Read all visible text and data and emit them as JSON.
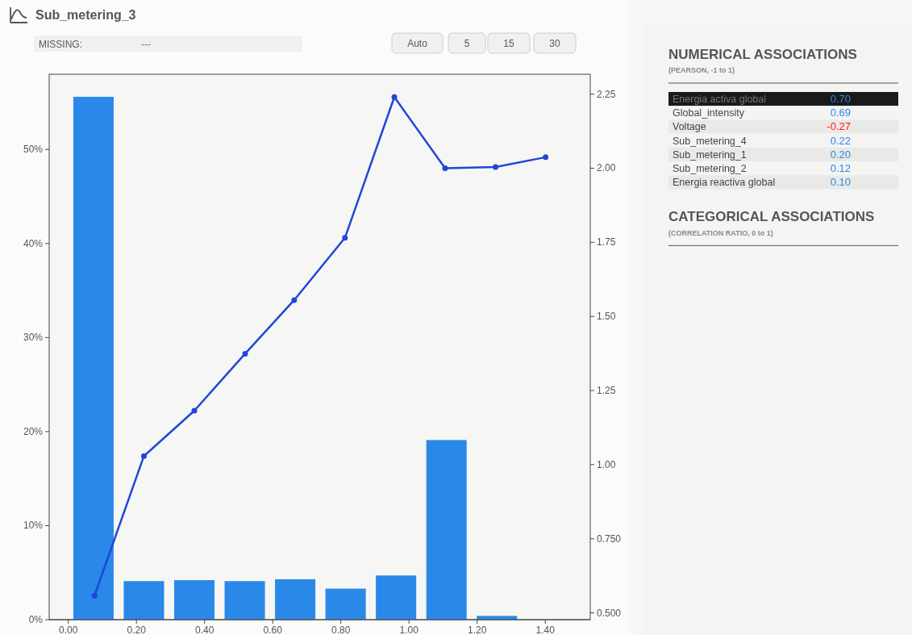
{
  "chart_data": [
    {
      "type": "histogram",
      "title": "Sub_metering_3",
      "annotations": [
        "MISSING:",
        "---",
        "Auto",
        "5",
        "15",
        "30"
      ],
      "bins": [
        0,
        0.148,
        0.296,
        0.444,
        0.592,
        0.74,
        0.888,
        1.036,
        1.184,
        1.332,
        1.48
      ],
      "series": [
        {
          "type": "histogram",
          "color": "#2a88e8",
          "values": [
            55.6,
            4.1,
            4.2,
            4.1,
            4.3,
            3.3,
            4.7,
            19.1,
            0.4,
            0
          ]
        },
        {
          "type": "line",
          "axis": "y2",
          "color": "#2146d8",
          "x": [
            0.077,
            0.222,
            0.37,
            0.519,
            0.663,
            0.812,
            0.957,
            1.106,
            1.254,
            1.401
          ],
          "values": [
            0.558,
            1.029,
            1.182,
            1.374,
            1.555,
            1.765,
            2.24,
            2.0,
            2.004,
            2.037
          ]
        }
      ],
      "xlim": [
        -0.056,
        1.532
      ],
      "xticks": [
        {
          "value": 0,
          "label": "0.00"
        },
        {
          "value": 0.2,
          "label": "0.20"
        },
        {
          "value": 0.4,
          "label": "0.40"
        },
        {
          "value": 0.6,
          "label": "0.60"
        },
        {
          "value": 0.8,
          "label": "0.80"
        },
        {
          "value": 1,
          "label": "1.00"
        },
        {
          "value": 1.2,
          "label": "1.20"
        },
        {
          "value": 1.4,
          "label": "1.40"
        }
      ],
      "ylim": [
        0,
        58
      ],
      "yticks": [
        {
          "value": 0,
          "label": "0%"
        },
        {
          "value": 10,
          "label": "10%"
        },
        {
          "value": 20,
          "label": "20%"
        },
        {
          "value": 30,
          "label": "30%"
        },
        {
          "value": 40,
          "label": "40%"
        },
        {
          "value": 50,
          "label": "50%"
        }
      ],
      "y2lim": [
        0.477,
        2.317
      ],
      "y2ticks": [
        {
          "value": 0.5,
          "label": "0.500"
        },
        {
          "value": 0.75,
          "label": "0.750"
        },
        {
          "value": 1,
          "label": "1.00"
        },
        {
          "value": 1.25,
          "label": "1.25"
        },
        {
          "value": 1.5,
          "label": "1.50"
        },
        {
          "value": 1.75,
          "label": "1.75"
        },
        {
          "value": 2,
          "label": "2.00"
        },
        {
          "value": 2.25,
          "label": "2.25"
        }
      ],
      "marker": "circle",
      "grid": false
    },
    {
      "type": "other",
      "title": "NUMERICAL ASSOCIATIONS",
      "subtitle": "(PEARSON, -1 to 1)",
      "categories": [
        "Energia activa global",
        "Global_intensity",
        "Voltage",
        "Sub_metering_4",
        "Sub_metering_1",
        "Sub_metering_2",
        "Energia reactiva global"
      ],
      "values": [
        0.7,
        0.69,
        -0.27,
        0.22,
        0.2,
        0.12,
        0.1
      ],
      "value_labels": [
        "0.70",
        "0.69",
        "-0.27",
        "0.22",
        "0.20",
        "0.12",
        "0.10"
      ],
      "annotations": [
        "CATEGORICAL ASSOCIATIONS",
        "(CORRELATION RATIO, 0 to 1)"
      ]
    }
  ]
}
